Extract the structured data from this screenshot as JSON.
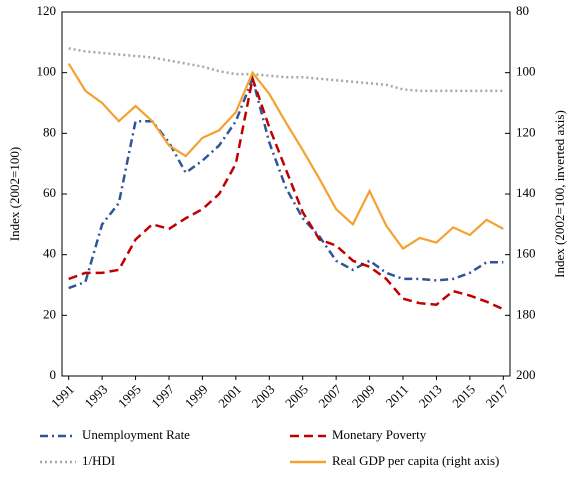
{
  "chart_data": {
    "type": "line",
    "x": [
      1991,
      1992,
      1993,
      1994,
      1995,
      1996,
      1997,
      1998,
      1999,
      2000,
      2001,
      2002,
      2003,
      2004,
      2005,
      2006,
      2007,
      2008,
      2009,
      2010,
      2011,
      2012,
      2013,
      2014,
      2015,
      2016,
      2017
    ],
    "xlim": [
      1990.6,
      2017.4
    ],
    "xticks": [
      1991,
      1993,
      1995,
      1997,
      1999,
      2001,
      2003,
      2005,
      2007,
      2009,
      2011,
      2013,
      2015,
      2017
    ],
    "ylim": [
      0,
      120
    ],
    "yticks": [
      0,
      20,
      40,
      60,
      80,
      100,
      120
    ],
    "y2lim": [
      200,
      80
    ],
    "y2ticks": [
      80,
      100,
      120,
      140,
      160,
      180,
      200
    ],
    "ylabel": "Index (2002=100)",
    "y2label": "Index (2002=100, inverted axis)",
    "series": [
      {
        "name": "Unemployment Rate",
        "color": "#2e5597",
        "dash": "8 4 2 4",
        "values": [
          29,
          31,
          50,
          57,
          84,
          84,
          77,
          67,
          71,
          76,
          84,
          98,
          77,
          62,
          52,
          46,
          38,
          35,
          38,
          34,
          32,
          32,
          31.5,
          32,
          34,
          37.5,
          37.5
        ]
      },
      {
        "name": "Monetary Poverty",
        "color": "#c00000",
        "dash": "9 5",
        "values": [
          32,
          34,
          34,
          35,
          45,
          50,
          48.5,
          52,
          55,
          60,
          70,
          98,
          82,
          68,
          54,
          45,
          43,
          38,
          36,
          32,
          25.5,
          24,
          23.5,
          28,
          26.5,
          24.5,
          22
        ]
      },
      {
        "name": "1/HDI",
        "color": "#a6a6a6",
        "dash": "2 3",
        "values": [
          108,
          107,
          106.5,
          106,
          105.5,
          105,
          104,
          103,
          102,
          100.5,
          99.5,
          99.5,
          99,
          98.5,
          98.5,
          98,
          97.5,
          97,
          96.5,
          96,
          94.5,
          94,
          94,
          94,
          94,
          94,
          94
        ]
      },
      {
        "name": "Real GDP per capita (right axis)",
        "color": "#f4a130",
        "dash": "",
        "axis": "y2",
        "values": [
          97,
          106,
          110,
          116,
          111,
          116,
          124,
          127.5,
          121.5,
          119,
          113,
          100,
          107,
          116.5,
          125.5,
          135,
          145,
          150,
          139,
          150.5,
          158,
          154.5,
          156,
          151,
          153.5,
          148.5,
          151.5
        ]
      }
    ]
  }
}
